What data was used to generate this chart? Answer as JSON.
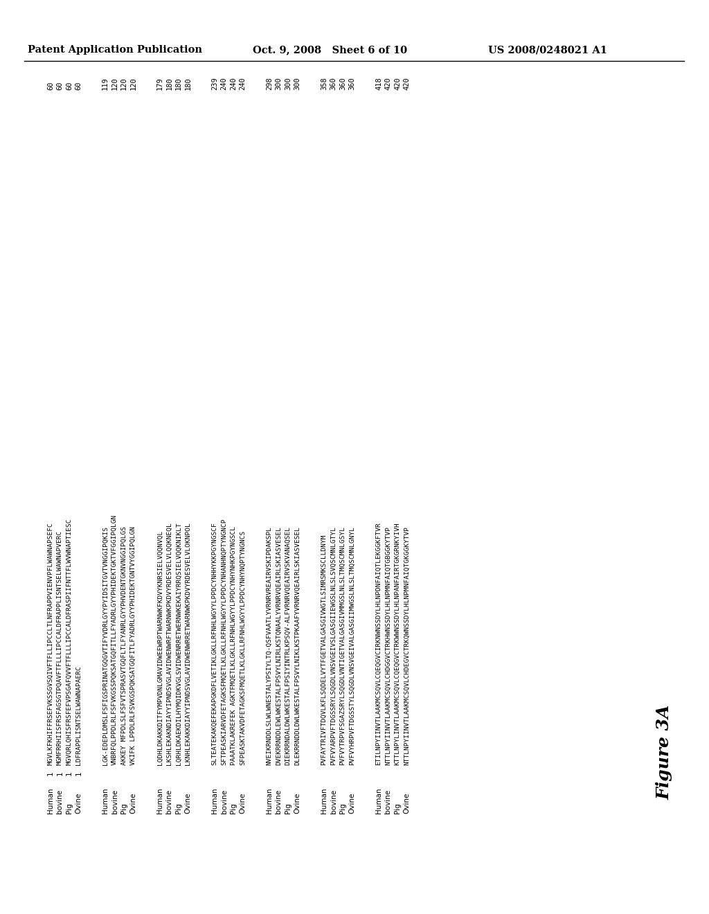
{
  "header_left": "Patent Application Publication",
  "header_mid": "Oct. 9, 2008   Sheet 6 of 10",
  "header_right": "US 2008/0248021 A1",
  "figure_label": "Figure 3A",
  "blocks": [
    {
      "rows": [
        {
          "species": "Human",
          "num": "1",
          "seq": "MGVLKFKHIFFRSEFVKSSGVSQIVFTFLLIPCCLTLNFRAPPVIENVPFLWAWNAPSEFC",
          "end": "60"
        },
        {
          "species": "bovine",
          "num": "1",
          "seq": "MGMFRRHIISFRSFAGSGTPQAVFTFLLLIPCCALDFRAPPLISNTSELWAWNAPVERC",
          "end": "60"
        },
        {
          "species": "Pig",
          "num": "1",
          "seq": "MGVQRLQHISFRSFEFVPSGAFQVVFTFLLLIPCCALDFRASPIIFNTTFLWVWNAPTIESC",
          "end": "60"
        },
        {
          "species": "Ovine",
          "num": "1",
          "seq": "LDFRAPPLISNTSELWAWNAPAERC",
          "end": "60"
        }
      ]
    },
    {
      "rows": [
        {
          "species": "Human",
          "num": "",
          "seq": "LGK-EDEPLDMSLFSFIGSPRINATGQGVTIFYVDRLGYYPYIDSITGVTVNGGIPQKIS",
          "end": "119"
        },
        {
          "species": "bovine",
          "num": "",
          "seq": "VNBRFQLPPDLRLFSFVKGSSPQKSATGQFITLLFYADRLGYYPHIDEKTGKTVFGGIPQLGN",
          "end": "120"
        },
        {
          "species": "Pig",
          "num": "",
          "seq": "AKKEY MFPDLSLFSFVTSPRASVTGQFLTLFYANRLGYYPHVDENTGKNVNGGIPQLGS",
          "end": "120"
        },
        {
          "species": "Ovine",
          "num": "",
          "seq": "VKIFK LPPDLRLFSVKGSPQKSATGQFITLFYADRLGYYPHIDEKTGNTVYGGIPQLGN",
          "end": "120"
        }
      ]
    },
    {
      "rows": [
        {
          "species": "Human",
          "num": "",
          "seq": "LQDHLDKAKKDITFYMPVDNLGMAVIDWEEWRPTWARNWKFKDVYKNRSIELVQQNVQL",
          "end": "179"
        },
        {
          "species": "bovine",
          "num": "",
          "seq": "LKSHLEKAKNDIAYYIPNDSVGLAVIDWENWRFTWARNWKPKDVYRDESVELVLQQKNEQL",
          "end": "180"
        },
        {
          "species": "Pig",
          "num": "",
          "seq": "LQRHLDKAEKDILHYMQIDKVGLSVIDWENRRETWERNWKEKAIYRRQSIELVQQKNIKLT",
          "end": "180"
        },
        {
          "species": "Ovine",
          "num": "",
          "seq": "LKNHLEKAKKDIAYYIPNDSVGLAVIDWENWRRETWARNWKPKDVYRDESVELVLOKNPOL",
          "end": "180"
        }
      ]
    },
    {
      "rows": [
        {
          "species": "Human",
          "num": "",
          "seq": "SLTEATEKAKQEFEKAPGKDFLVETIKLGKLLRFNHLWGYYLPPDCYNHHYKKPGYNGSCF",
          "end": "239"
        },
        {
          "species": "bovine",
          "num": "",
          "seq": "SFTPEASKIARVDFETAGKSFMQETLKLGKLLRFNHLWGYYLPPDCYNHANHNQPTYNGNCP",
          "end": "240"
        },
        {
          "species": "Pig",
          "num": "",
          "seq": "PAAATKLAKREFEK AGKTFMQETLKLGKLLRFNHLWGYYLPPDCYNHYNHKPGYNGSCL",
          "end": "240"
        },
        {
          "species": "Ovine",
          "num": "",
          "seq": "SFPEASKTAKVDFETAGKSFMQETLKLGKLLRFNHLWGYYLPPDCYNHYNQPTYNGNCS",
          "end": "240"
        }
      ]
    },
    {
      "rows": [
        {
          "species": "Human",
          "num": "",
          "seq": "NVEIKRNDDLSLWLWNESTALYPSIYLTQ-QSFVAATLYVRNRVREAIRVSKIPDAKSPL",
          "end": "298"
        },
        {
          "species": "bovine",
          "num": "",
          "seq": "DVEKRRNDDLEWLWKESTALFPSVYLNIRLKSTQNAALYVRNRVQEAIRLSKIASVESEL",
          "end": "300"
        },
        {
          "species": "Pig",
          "num": "",
          "seq": "DIEKRRNDALDWLWKESTALFPSIYINTRLKPSQV-ALFVRNRVQEAIRVSKVANAQSEL",
          "end": "300"
        },
        {
          "species": "Ovine",
          "num": "",
          "seq": "DLEKRRNDDLDWLWKESTALFPSVYLNIKLKSTPKAAFYVRNRVQEAIRLSKIASVESEL",
          "end": "300"
        }
      ]
    },
    {
      "rows": [
        {
          "species": "Human",
          "num": "",
          "seq": "PVFAYTRIVFTDQVLKFLSQDELVYTFGETVALGASGIVWGTLSIMRSMKSCLLDNYM",
          "end": "358"
        },
        {
          "species": "bovine",
          "num": "",
          "seq": "PVFVYARPVFTDGSSRYLSQGDLVNSVGEIVSLGASGIIEWGSLNLSLSVQSCMNLGTYL",
          "end": "360"
        },
        {
          "species": "Pig",
          "num": "",
          "seq": "PVFVYTRPVFSGAZSRYLSQGDLVNTIGETVALGASGIVMMGSLNLSLTMQSCMNLGSYL",
          "end": "360"
        },
        {
          "species": "Ovine",
          "num": "",
          "seq": "PVFVYHRPVFTDGSSTYLSQGDLVNSVGEIVALGASGIIMWGSLNLSLTMQSCMNLGNYL",
          "end": "360"
        }
      ]
    },
    {
      "rows": [
        {
          "species": "Human",
          "num": "",
          "seq": "ETILNPYIINVTLAAKMCSQVLCQEQGVCIRKNWNSSDYLHLNPDNFAIQTLEKGGKFTVR",
          "end": "418"
        },
        {
          "species": "bovine",
          "num": "",
          "seq": "NTTLNPYIINVTLAAKMCSQVLCHDGGVCTRKHWNSSDYLHLNPMNFAIQTGBGGKYTVP",
          "end": "420"
        },
        {
          "species": "Pig",
          "num": "",
          "seq": "KTTLNPYLINVTLAAKMCSQVLCQEQGVCTRKWWNSSDYLHLNPANFAIRTGKGRNKYIVH",
          "end": "420"
        },
        {
          "species": "Ovine",
          "num": "",
          "seq": "NTTLNPYIINVTLAAKMCSQVLCHDEGVCTRKQWNSSDYLHLNPMNFAIQTGKGGKYTVP",
          "end": "420"
        }
      ]
    }
  ]
}
